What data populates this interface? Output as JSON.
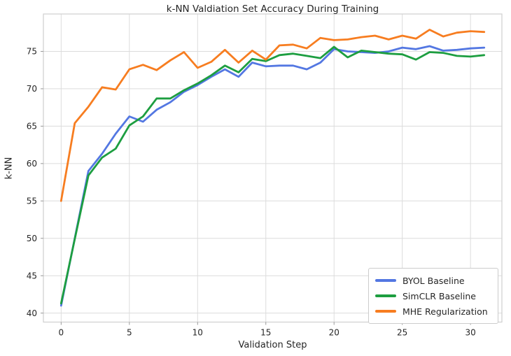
{
  "figure": {
    "background": "#ffffff",
    "grid_color": "#dcdcdc",
    "spine_color": "#cfcfcf",
    "tick_color": "#999999",
    "text_color": "#262626"
  },
  "chart_data": {
    "type": "line",
    "title": "k-NN Valdiation Set Accuracy During Training",
    "xlabel": "Validation Step",
    "ylabel": "k-NN",
    "grid": true,
    "legend_position": "lower right",
    "xlim": [
      -1.3,
      32.3
    ],
    "ylim": [
      38.8,
      80.0
    ],
    "xticks": [
      0,
      5,
      10,
      15,
      20,
      25,
      30
    ],
    "yticks": [
      40,
      45,
      50,
      55,
      60,
      65,
      70,
      75
    ],
    "x": [
      0,
      1,
      2,
      3,
      4,
      5,
      6,
      7,
      8,
      9,
      10,
      11,
      12,
      13,
      14,
      15,
      16,
      17,
      18,
      19,
      20,
      21,
      22,
      23,
      24,
      25,
      26,
      27,
      28,
      29,
      30,
      31
    ],
    "series": [
      {
        "name": "BYOL Baseline",
        "color": "#5377e2",
        "values": [
          41.0,
          50.0,
          59.0,
          61.3,
          64.0,
          66.3,
          65.6,
          67.2,
          68.2,
          69.6,
          70.5,
          71.6,
          72.6,
          71.6,
          73.5,
          73.0,
          73.1,
          73.1,
          72.6,
          73.5,
          75.3,
          75.0,
          74.9,
          74.8,
          75.0,
          75.5,
          75.3,
          75.7,
          75.1,
          75.2,
          75.4,
          75.5
        ]
      },
      {
        "name": "SimCLR Baseline",
        "color": "#1d9e40",
        "values": [
          41.3,
          49.9,
          58.4,
          60.8,
          62.0,
          65.1,
          66.3,
          68.7,
          68.7,
          69.8,
          70.7,
          71.8,
          73.1,
          72.2,
          74.0,
          73.7,
          74.5,
          74.7,
          74.4,
          74.1,
          75.6,
          74.2,
          75.1,
          74.9,
          74.7,
          74.6,
          73.9,
          74.9,
          74.8,
          74.4,
          74.3,
          74.5
        ]
      },
      {
        "name": "MHE Regularization",
        "color": "#f77d20",
        "values": [
          55.0,
          65.4,
          67.6,
          70.2,
          69.9,
          72.6,
          73.2,
          72.5,
          73.8,
          74.9,
          72.8,
          73.6,
          75.2,
          73.5,
          75.1,
          73.9,
          75.8,
          75.9,
          75.4,
          76.8,
          76.5,
          76.6,
          76.9,
          77.1,
          76.6,
          77.1,
          76.7,
          77.9,
          77.0,
          77.5,
          77.7,
          77.6
        ]
      }
    ]
  }
}
